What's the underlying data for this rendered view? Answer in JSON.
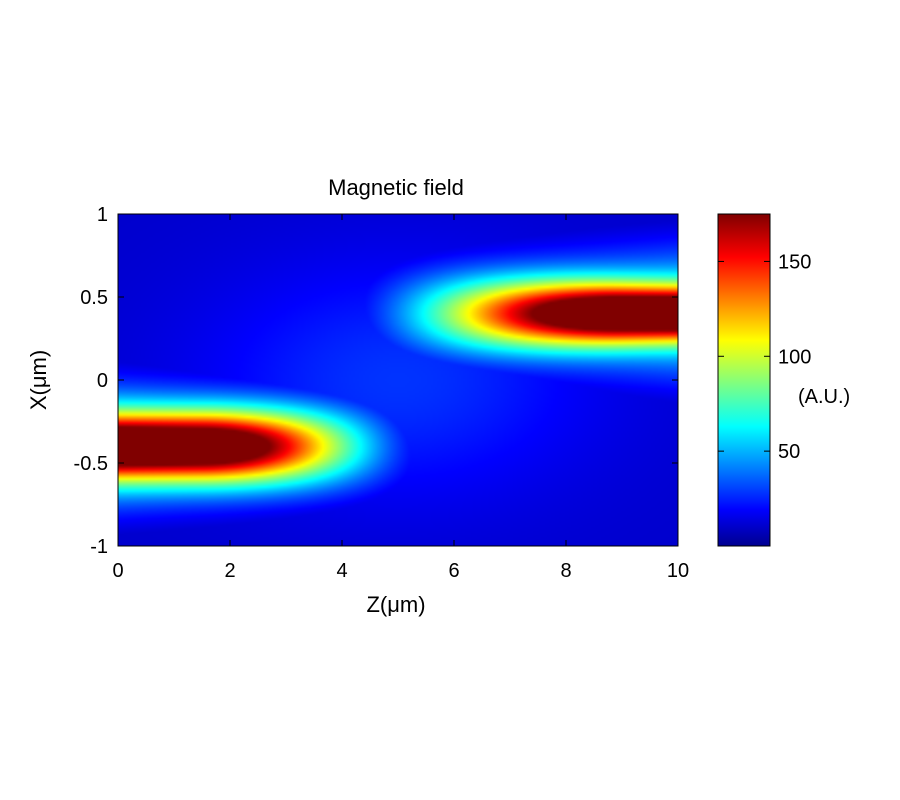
{
  "chart_data": {
    "type": "heatmap",
    "title": "Magnetic field",
    "xlabel": "Z(μm)",
    "ylabel": "X(μm)",
    "xlim": [
      0,
      10
    ],
    "ylim": [
      -1,
      1
    ],
    "x_ticks": [
      0,
      2,
      4,
      6,
      8,
      10
    ],
    "x_tick_labels": [
      "0",
      "2",
      "4",
      "6",
      "8",
      "10"
    ],
    "y_ticks": [
      1,
      0.5,
      0,
      -0.5,
      -1
    ],
    "y_tick_labels": [
      "1",
      "0.5",
      "0",
      "-0.5",
      "-1"
    ],
    "colormap": "jet",
    "colorbar": {
      "label": "(A.U.)",
      "range": [
        0,
        175
      ],
      "ticks": [
        50,
        100,
        150
      ],
      "tick_labels": [
        "50",
        "100",
        "150"
      ]
    },
    "field_lobes": [
      {
        "x_center": -0.4,
        "z_range": [
          0,
          5.5
        ],
        "z_peak": 0.8,
        "peak_value": 170
      },
      {
        "x_center": 0.4,
        "z_range": [
          4.5,
          10
        ],
        "z_peak": 9.0,
        "peak_value": 175
      }
    ]
  }
}
